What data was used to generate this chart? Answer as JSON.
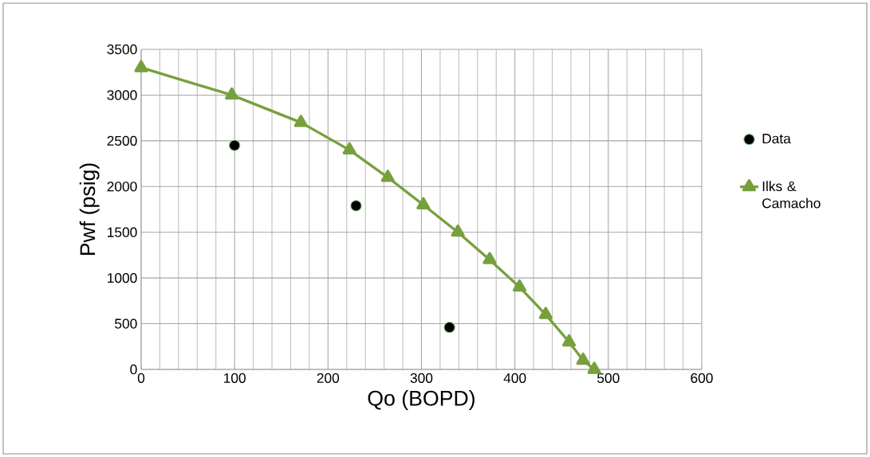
{
  "chart_data": {
    "type": "scatter",
    "xlabel": "Qo (BOPD)",
    "ylabel": "Pwf (psig)",
    "xlim": [
      0,
      600
    ],
    "xticks": [
      0,
      100,
      200,
      300,
      400,
      500,
      600
    ],
    "ylim": [
      0,
      3500
    ],
    "yticks": [
      0,
      500,
      1000,
      1500,
      2000,
      2500,
      3000,
      3500
    ],
    "grid": true,
    "legend": "right",
    "series": [
      {
        "name": "Data",
        "marker": "circle",
        "color": "#000000",
        "x": [
          100,
          230,
          330
        ],
        "values": [
          2450,
          1790,
          460
        ]
      },
      {
        "name": "Ilks & Camacho",
        "type": "line",
        "marker": "triangle",
        "line_style": "solid",
        "color": "#77a03c",
        "x": [
          0,
          97,
          171,
          223,
          264,
          302,
          339,
          373,
          405,
          433,
          458,
          473,
          485
        ],
        "values": [
          3300,
          3000,
          2700,
          2400,
          2100,
          1800,
          1500,
          1200,
          900,
          600,
          300,
          100,
          0
        ]
      }
    ]
  }
}
